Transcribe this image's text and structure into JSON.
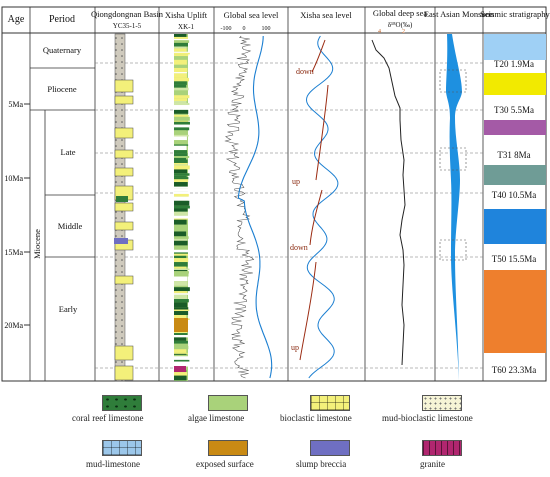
{
  "headers": {
    "age": "Age",
    "period": "Period",
    "qiong": "Qiongdongnan Basin",
    "qiong_sub": "YC35-1-5",
    "xisha": "Xisha Uplift",
    "xisha_sub": "XK-1",
    "global_sea": "Global sea level",
    "global_ticks": [
      "-100",
      "0",
      "100"
    ],
    "xisha_sea": "Xisha sea level",
    "deep_sea": "Global deep sea",
    "deep_sea_axis": "δ¹⁸O(‰)",
    "deep_sea_ticks": [
      "4",
      "2"
    ],
    "monsoon": "East Asian Monsoon",
    "seismic": "Seismic stratigraphy"
  },
  "ages": [
    "5Ma",
    "10Ma",
    "15Ma",
    "20Ma"
  ],
  "periods": {
    "quaternary": "Quaternary",
    "pliocene": "Pliocene",
    "miocene": "Miocene",
    "late": "Late",
    "middle": "Middle",
    "early": "Early"
  },
  "xisha_trends": [
    "down",
    "up",
    "down",
    "up"
  ],
  "seismic": [
    {
      "label": "T20 1.9Ma",
      "color": "#ffffff"
    },
    {
      "label": "T30 5.5Ma",
      "color": "#f2ea00"
    },
    {
      "label": "T31 8Ma",
      "color": "#a45aa6"
    },
    {
      "label": "T40 10.5Ma",
      "color": "#6f9c96"
    },
    {
      "label": "T50 15.5Ma",
      "color": "#1f84dc"
    },
    {
      "label": "T60 23.3Ma",
      "color": "#ee7f2d"
    }
  ],
  "seismic_top_color": "#9fd0f5",
  "legend": [
    {
      "label": "coral reef limestone",
      "color": "#2f7d3a",
      "pattern": "coral"
    },
    {
      "label": "algae limestone",
      "color": "#a9d27a",
      "pattern": "plain"
    },
    {
      "label": "bioclastic limestone",
      "color": "#f3f07a",
      "pattern": "brick"
    },
    {
      "label": "mud-bioclastic limestone",
      "color": "#f6f4d6",
      "pattern": "dots"
    },
    {
      "label": "mud-limestone",
      "color": "#9cc7ea",
      "pattern": "brick"
    },
    {
      "label": "exposed surface",
      "color": "#c98a14",
      "pattern": "plain"
    },
    {
      "label": "slump breccia",
      "color": "#6f6fc2",
      "pattern": "plain"
    },
    {
      "label": "granite",
      "color": "#b0266f",
      "pattern": "dash"
    }
  ]
}
